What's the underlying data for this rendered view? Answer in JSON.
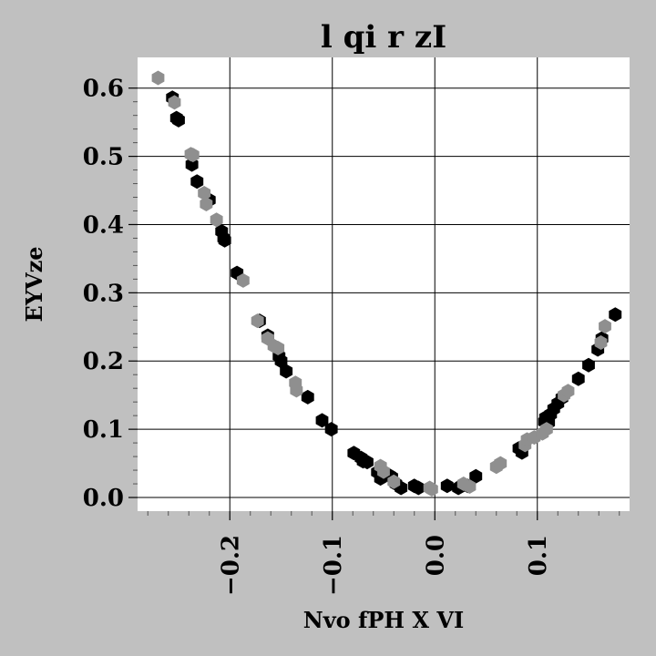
{
  "chart_data": {
    "type": "scatter",
    "title": "l qi r zI",
    "xlabel": "Nvo fPH X VI",
    "ylabel": "EYVze",
    "xlim": [
      -0.29,
      0.19
    ],
    "ylim": [
      -0.02,
      0.645
    ],
    "xticks": [
      -0.2,
      -0.1,
      0.0,
      0.1
    ],
    "xtick_labels": [
      "−0.2",
      "−0.1",
      "0.0",
      "0.1"
    ],
    "yticks": [
      0.0,
      0.1,
      0.2,
      0.3,
      0.4,
      0.5,
      0.6
    ],
    "ytick_labels": [
      "0.0",
      "0.1",
      "0.2",
      "0.3",
      "0.4",
      "0.5",
      "0.6"
    ],
    "grid": true,
    "legend": "none",
    "marker": "hexagon",
    "colors": {
      "background": "#c0c0c0",
      "plot_area": "#ffffff",
      "grid": "#000000"
    },
    "series": [
      {
        "color": "#000000",
        "points": [
          [
            -0.256,
            0.586
          ],
          [
            -0.252,
            0.556
          ],
          [
            -0.25,
            0.553
          ],
          [
            -0.237,
            0.488
          ],
          [
            -0.232,
            0.463
          ],
          [
            -0.22,
            0.436
          ],
          [
            -0.208,
            0.39
          ],
          [
            -0.206,
            0.38
          ],
          [
            -0.205,
            0.377
          ],
          [
            -0.193,
            0.329
          ],
          [
            -0.171,
            0.259
          ],
          [
            -0.163,
            0.237
          ],
          [
            -0.152,
            0.207
          ],
          [
            -0.15,
            0.2
          ],
          [
            -0.145,
            0.185
          ],
          [
            -0.124,
            0.147
          ],
          [
            -0.11,
            0.113
          ],
          [
            -0.101,
            0.1
          ],
          [
            -0.079,
            0.065
          ],
          [
            -0.072,
            0.058
          ],
          [
            -0.07,
            0.053
          ],
          [
            -0.066,
            0.052
          ],
          [
            -0.056,
            0.037
          ],
          [
            -0.053,
            0.028
          ],
          [
            -0.044,
            0.032
          ],
          [
            -0.042,
            0.03
          ],
          [
            -0.038,
            0.02
          ],
          [
            -0.033,
            0.014
          ],
          [
            -0.02,
            0.017
          ],
          [
            -0.016,
            0.014
          ],
          [
            0.012,
            0.017
          ],
          [
            0.023,
            0.014
          ],
          [
            0.026,
            0.017
          ],
          [
            0.032,
            0.017
          ],
          [
            0.04,
            0.031
          ],
          [
            0.082,
            0.072
          ],
          [
            0.085,
            0.066
          ],
          [
            0.107,
            0.111
          ],
          [
            0.108,
            0.117
          ],
          [
            0.111,
            0.11
          ],
          [
            0.113,
            0.122
          ],
          [
            0.116,
            0.13
          ],
          [
            0.12,
            0.138
          ],
          [
            0.124,
            0.146
          ],
          [
            0.14,
            0.174
          ],
          [
            0.15,
            0.194
          ],
          [
            0.159,
            0.217
          ],
          [
            0.163,
            0.233
          ],
          [
            0.176,
            0.268
          ]
        ]
      },
      {
        "color": "#8f8f8f",
        "points": [
          [
            -0.27,
            0.615
          ],
          [
            -0.254,
            0.579
          ],
          [
            -0.238,
            0.503
          ],
          [
            -0.236,
            0.502
          ],
          [
            -0.225,
            0.446
          ],
          [
            -0.223,
            0.43
          ],
          [
            -0.213,
            0.407
          ],
          [
            -0.187,
            0.318
          ],
          [
            -0.173,
            0.259
          ],
          [
            -0.163,
            0.233
          ],
          [
            -0.157,
            0.222
          ],
          [
            -0.153,
            0.219
          ],
          [
            -0.136,
            0.168
          ],
          [
            -0.135,
            0.157
          ],
          [
            -0.053,
            0.046
          ],
          [
            -0.05,
            0.038
          ],
          [
            -0.04,
            0.023
          ],
          [
            -0.005,
            0.014
          ],
          [
            -0.003,
            0.012
          ],
          [
            0.028,
            0.02
          ],
          [
            0.034,
            0.016
          ],
          [
            0.06,
            0.045
          ],
          [
            0.064,
            0.05
          ],
          [
            0.088,
            0.077
          ],
          [
            0.09,
            0.085
          ],
          [
            0.097,
            0.088
          ],
          [
            0.105,
            0.094
          ],
          [
            0.109,
            0.1
          ],
          [
            0.126,
            0.15
          ],
          [
            0.13,
            0.156
          ],
          [
            0.162,
            0.227
          ],
          [
            0.166,
            0.251
          ]
        ]
      }
    ]
  }
}
